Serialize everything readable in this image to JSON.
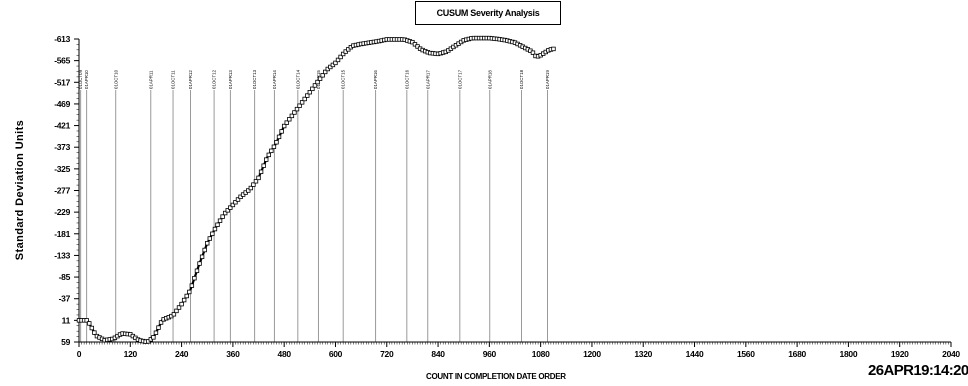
{
  "title": "CUSUM Severity Analysis",
  "timestamp": "26APR19:14:20",
  "chart_data": {
    "type": "scatter",
    "title": "CUSUM Severity Analysis",
    "xlabel": "COUNT IN COMPLETION DATE ORDER",
    "ylabel": "Standard Deviation Units",
    "xlim": [
      0,
      2040
    ],
    "ylim": [
      -613,
      59
    ],
    "y_inverted": true,
    "grid": false,
    "legend": "none",
    "x_ticks": [
      0,
      120,
      240,
      360,
      480,
      600,
      720,
      840,
      960,
      1080,
      1200,
      1320,
      1440,
      1560,
      1680,
      1800,
      1920,
      2040
    ],
    "y_ticks": [
      {
        "value": -613,
        "label": "-613"
      },
      {
        "value": -565,
        "label": "-565"
      },
      {
        "value": -517,
        "label": "-517"
      },
      {
        "value": -469,
        "label": "-469"
      },
      {
        "value": -421,
        "label": "-421"
      },
      {
        "value": -373,
        "label": "-373"
      },
      {
        "value": -325,
        "label": "-325"
      },
      {
        "value": -277,
        "label": "-277"
      },
      {
        "value": -229,
        "label": "-229"
      },
      {
        "value": -181,
        "label": "-181"
      },
      {
        "value": -133,
        "label": "-133"
      },
      {
        "value": -85,
        "label": "-85"
      },
      {
        "value": -37,
        "label": "-37"
      },
      {
        "value": 11,
        "label": "11"
      },
      {
        "value": 59,
        "label": "59"
      }
    ],
    "reference_lines": [
      {
        "x": 4,
        "label": "01OCT09"
      },
      {
        "x": 18,
        "label": "01APR10"
      },
      {
        "x": 86,
        "label": "01OCT10"
      },
      {
        "x": 168,
        "label": "01APR11"
      },
      {
        "x": 220,
        "label": "01OCT11"
      },
      {
        "x": 261,
        "label": "01APR12"
      },
      {
        "x": 316,
        "label": "01OCT12"
      },
      {
        "x": 354,
        "label": "01APR13"
      },
      {
        "x": 411,
        "label": "01OCT13"
      },
      {
        "x": 457,
        "label": "01APR14"
      },
      {
        "x": 512,
        "label": "01OCT14"
      },
      {
        "x": 560,
        "label": "01APR15"
      },
      {
        "x": 618,
        "label": "01OCT15"
      },
      {
        "x": 694,
        "label": "01APR16"
      },
      {
        "x": 767,
        "label": "01OCT16"
      },
      {
        "x": 816,
        "label": "01APR17"
      },
      {
        "x": 891,
        "label": "01OCT17"
      },
      {
        "x": 961,
        "label": "01APR18"
      },
      {
        "x": 1035,
        "label": "01OCT18"
      },
      {
        "x": 1096,
        "label": "01APR19"
      }
    ],
    "series": [
      {
        "marker": "open-square",
        "color": "#000000",
        "points": [
          [
            0,
            11
          ],
          [
            20,
            11
          ],
          [
            40,
            45
          ],
          [
            60,
            55
          ],
          [
            80,
            52
          ],
          [
            100,
            40
          ],
          [
            120,
            42
          ],
          [
            140,
            55
          ],
          [
            160,
            59
          ],
          [
            175,
            48
          ],
          [
            195,
            10
          ],
          [
            220,
            0
          ],
          [
            240,
            -25
          ],
          [
            260,
            -55
          ],
          [
            280,
            -110
          ],
          [
            300,
            -160
          ],
          [
            320,
            -195
          ],
          [
            340,
            -225
          ],
          [
            360,
            -245
          ],
          [
            380,
            -265
          ],
          [
            400,
            -280
          ],
          [
            420,
            -305
          ],
          [
            440,
            -350
          ],
          [
            460,
            -380
          ],
          [
            480,
            -420
          ],
          [
            500,
            -445
          ],
          [
            520,
            -470
          ],
          [
            540,
            -495
          ],
          [
            560,
            -520
          ],
          [
            580,
            -545
          ],
          [
            600,
            -560
          ],
          [
            620,
            -582
          ],
          [
            640,
            -598
          ],
          [
            660,
            -602
          ],
          [
            680,
            -605
          ],
          [
            700,
            -608
          ],
          [
            720,
            -612
          ],
          [
            740,
            -612
          ],
          [
            760,
            -612
          ],
          [
            780,
            -606
          ],
          [
            800,
            -590
          ],
          [
            820,
            -582
          ],
          [
            840,
            -580
          ],
          [
            860,
            -585
          ],
          [
            880,
            -598
          ],
          [
            900,
            -610
          ],
          [
            920,
            -615
          ],
          [
            940,
            -615
          ],
          [
            960,
            -615
          ],
          [
            980,
            -613
          ],
          [
            1000,
            -610
          ],
          [
            1020,
            -605
          ],
          [
            1040,
            -595
          ],
          [
            1060,
            -585
          ],
          [
            1070,
            -573
          ],
          [
            1080,
            -577
          ],
          [
            1090,
            -583
          ],
          [
            1100,
            -589
          ],
          [
            1110,
            -591
          ]
        ]
      }
    ]
  }
}
